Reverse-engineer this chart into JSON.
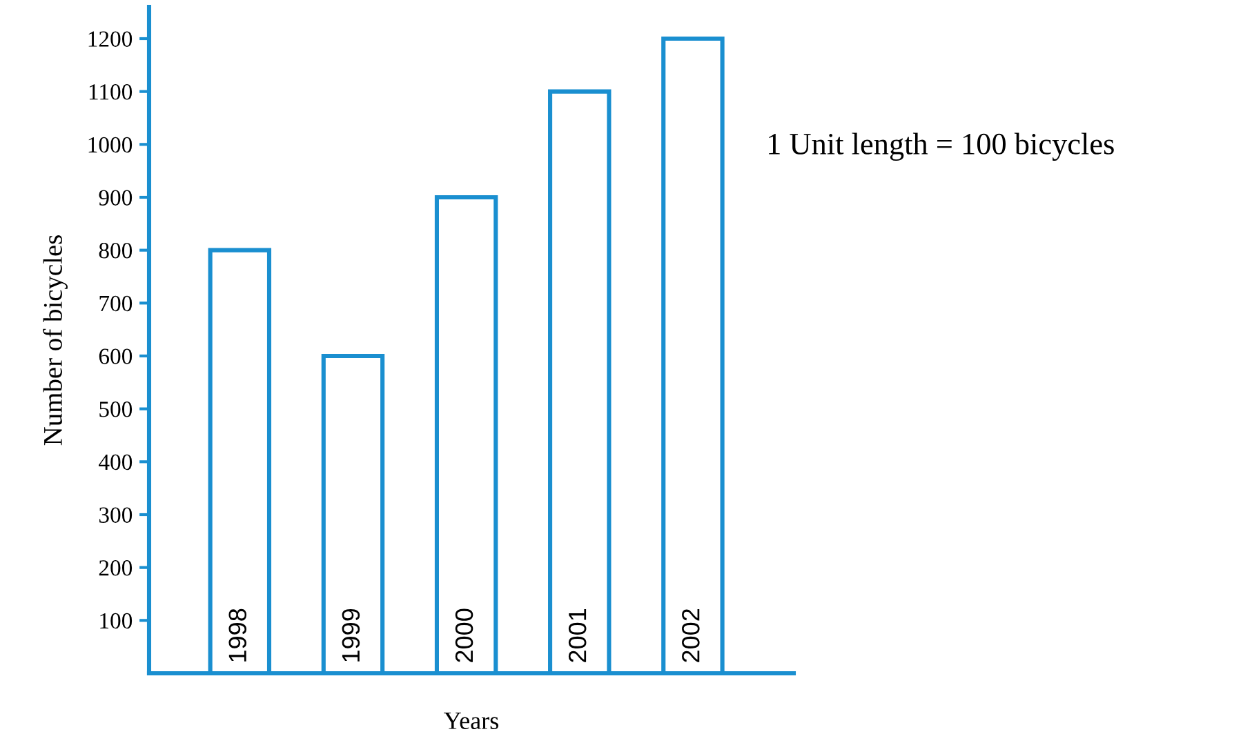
{
  "chart_data": {
    "type": "bar",
    "xlabel": "Years",
    "ylabel": "Number of bicycles",
    "categories": [
      "1998",
      "1999",
      "2000",
      "2001",
      "2002"
    ],
    "values": [
      800,
      600,
      900,
      1100,
      1200
    ],
    "color": "#1a8fd0",
    "ylim": [
      0,
      1260
    ],
    "yticks": [
      100,
      200,
      300,
      400,
      500,
      600,
      700,
      800,
      900,
      1000,
      1100,
      1200
    ],
    "grid": false,
    "legend": false,
    "annotations": [
      "1 Unit length = 100 bicycles"
    ]
  }
}
